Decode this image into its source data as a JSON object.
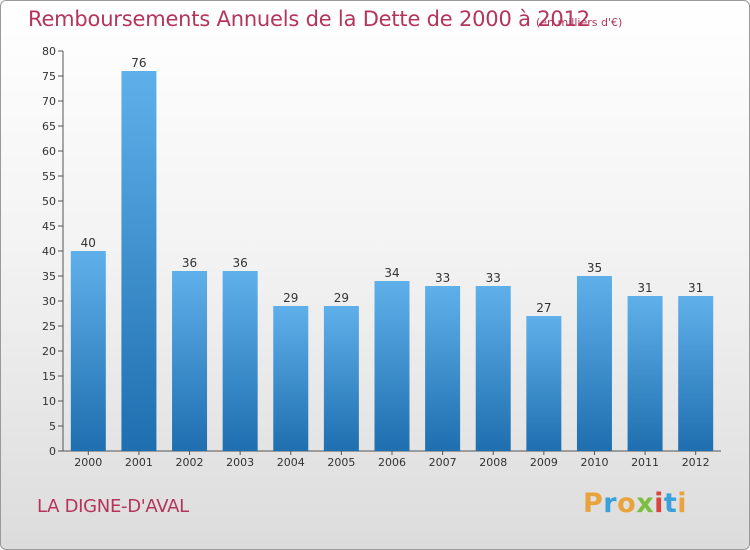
{
  "header": {
    "title": "Remboursements Annuels de la Dette de 2000 à 2012",
    "subtitle": "(en milliers d'€)"
  },
  "footer": {
    "location": "LA DIGNE-D'AVAL",
    "logo_letters": [
      "P",
      "r",
      "o",
      "x",
      "i",
      "t",
      "i"
    ]
  },
  "colors": {
    "title": "#b5345b",
    "bar_top": "#5fb0ea",
    "bar_bottom": "#1f6fb0",
    "logo": [
      "#e8a33d",
      "#3aa0dc",
      "#e8a33d",
      "#7bbf3e",
      "#d9443c",
      "#3aa0dc",
      "#e8a33d"
    ]
  },
  "chart_data": {
    "type": "bar",
    "title": "Remboursements Annuels de la Dette de 2000 à 2012",
    "subtitle": "(en milliers d'€)",
    "categories": [
      "2000",
      "2001",
      "2002",
      "2003",
      "2004",
      "2005",
      "2006",
      "2007",
      "2008",
      "2009",
      "2010",
      "2011",
      "2012"
    ],
    "values": [
      40,
      76,
      36,
      36,
      29,
      29,
      34,
      33,
      33,
      27,
      35,
      31,
      31
    ],
    "ylim": [
      0,
      80
    ],
    "yticks": [
      0,
      5,
      10,
      15,
      20,
      25,
      30,
      35,
      40,
      45,
      50,
      55,
      60,
      65,
      70,
      75,
      80
    ],
    "grid": false,
    "data_labels": true
  }
}
